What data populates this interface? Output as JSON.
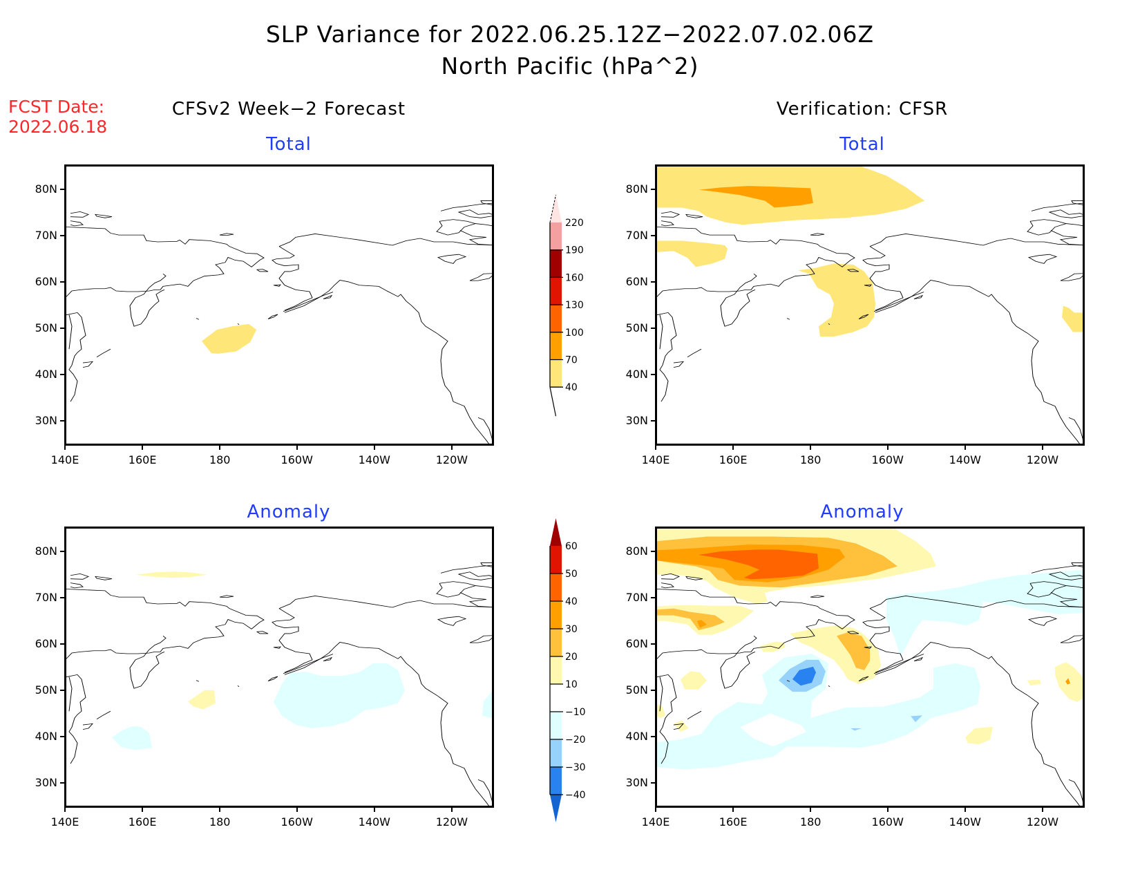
{
  "title": {
    "line1": "SLP Variance for 2022.06.25.12Z−2022.07.02.06Z",
    "line2": "North Pacific (hPa^2)"
  },
  "forecast_date": {
    "label": "FCST Date:",
    "value": "2022.06.18"
  },
  "columns": {
    "left": "CFSv2 Week−2 Forecast",
    "right": "Verification: CFSR"
  },
  "panels": {
    "fcst_total": {
      "subtitle": "Total"
    },
    "verif_total": {
      "subtitle": "Total"
    },
    "fcst_anom": {
      "subtitle": "Anomaly"
    },
    "verif_anom": {
      "subtitle": "Anomaly"
    }
  },
  "axes": {
    "lat_labels": [
      "80N",
      "70N",
      "60N",
      "50N",
      "40N",
      "30N"
    ],
    "lon_labels": [
      "140E",
      "160E",
      "180",
      "160W",
      "140W",
      "120W"
    ]
  },
  "colorbars": {
    "total": {
      "labels": [
        "220",
        "190",
        "160",
        "130",
        "100",
        "70",
        "40"
      ],
      "colors": [
        "#ffe4e4",
        "#f4a0a0",
        "#a00000",
        "#e01400",
        "#ff6400",
        "#ffa000",
        "#ffe678"
      ]
    },
    "anomaly": {
      "labels": [
        "60",
        "50",
        "40",
        "30",
        "20",
        "10",
        "−10",
        "−20",
        "−30",
        "−40"
      ],
      "colors": [
        "#a00000",
        "#e01400",
        "#ff6400",
        "#ffa000",
        "#ffc03c",
        "#fff8b0",
        "#ffffff",
        "#e0ffff",
        "#96d2fa",
        "#2882f0",
        "#1464d2"
      ]
    }
  },
  "chart_data": {
    "type": "heatmap",
    "title": "SLP Variance for 2022.06.25.12Z-2022.07.02.06Z, North Pacific (hPa^2)",
    "units": "hPa^2",
    "domain": {
      "lon_range": [
        "140E",
        "110W"
      ],
      "lat_range": [
        "25N",
        "85N"
      ]
    },
    "total_levels": [
      40,
      70,
      100,
      130,
      160,
      190,
      220
    ],
    "anomaly_levels": [
      -40,
      -30,
      -20,
      -10,
      10,
      20,
      30,
      40,
      50,
      60
    ],
    "panels": [
      {
        "name": "CFSv2 Week-2 Forecast - Total",
        "features": [
          {
            "region": "near 180/47N",
            "range": "40-70"
          }
        ]
      },
      {
        "name": "Verification CFSR - Total",
        "features": [
          {
            "region": "Arctic 160E-160W/80N",
            "range": "40-70 with 70-100 core"
          },
          {
            "region": "Bering Sea 175W/55N",
            "range": "40-70"
          },
          {
            "region": "East Siberian coast 145E/67N",
            "range": "40-70"
          },
          {
            "region": "East edge 112W/50N",
            "range": "40-70"
          }
        ]
      },
      {
        "name": "CFSv2 Week-2 Forecast - Anomaly",
        "features": [
          {
            "region": "north 160E-175E/75N",
            "range": "10-20"
          },
          {
            "region": "near 175E/48N",
            "range": "10-20"
          },
          {
            "region": "Gulf of Alaska 160W-140W/48N",
            "range": "-20 to -10"
          },
          {
            "region": "near 160E/40N",
            "range": "-20 to -10"
          }
        ]
      },
      {
        "name": "Verification CFSR - Anomaly",
        "features": [
          {
            "region": "Arctic 160E-170W/80N",
            "range": "10-50"
          },
          {
            "region": "near 178E/53N",
            "range": "-40 to -10"
          },
          {
            "region": "Bering Sea 170W/57N",
            "range": "10-30"
          },
          {
            "region": "N Pacific 35-45N band",
            "range": "-20 to -10"
          },
          {
            "region": "Beaufort Sea 150W-110W/70N",
            "range": "-20 to -10"
          }
        ]
      }
    ]
  }
}
